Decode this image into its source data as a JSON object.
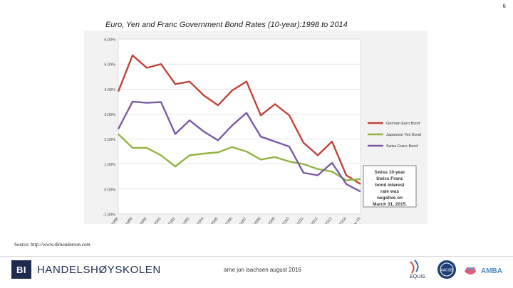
{
  "page_number": "6",
  "title": "Euro, Yen and Franc Government Bond Rates (10-year):1998 to 2014",
  "source": "Source: http://www.dimonderson.com",
  "footer": {
    "school": "HANDELSHØYSKOLEN",
    "logo_mark": "BI",
    "author_date": "arne jon isachsen august 2016",
    "accreditations": [
      {
        "name": "EQUIS",
        "icon": "equis-logo"
      },
      {
        "name": "AACSB",
        "icon": "aacsb-seal"
      },
      {
        "name": "AMBA",
        "icon": "amba-logo"
      }
    ]
  },
  "chart_data": {
    "type": "line",
    "x": [
      "1998",
      "1999",
      "2000",
      "2001",
      "2002",
      "2003",
      "2004",
      "2005",
      "2006",
      "2007",
      "2008",
      "2009",
      "2010",
      "2011",
      "2012",
      "2013",
      "2014",
      "11-Mar-15"
    ],
    "ylim": [
      -1,
      6
    ],
    "yticks": [
      "-1.00%",
      "0.00%",
      "1.00%",
      "2.00%",
      "3.00%",
      "4.00%",
      "5.00%",
      "6.00%"
    ],
    "grid": true,
    "legend_position": "right",
    "series": [
      {
        "name": "German Euro Bond",
        "color": "#c0443a",
        "values": [
          3.9,
          5.35,
          4.85,
          5.0,
          4.2,
          4.3,
          3.75,
          3.35,
          3.95,
          4.3,
          2.95,
          3.4,
          2.95,
          1.85,
          1.35,
          1.9,
          0.55,
          0.2
        ]
      },
      {
        "name": "Japanese Yen Bond",
        "color": "#93b341",
        "values": [
          2.2,
          1.65,
          1.65,
          1.35,
          0.9,
          1.35,
          1.42,
          1.47,
          1.68,
          1.5,
          1.18,
          1.28,
          1.1,
          1.0,
          0.8,
          0.7,
          0.35,
          0.4
        ]
      },
      {
        "name": "Swiss Franc Bond",
        "color": "#7a5aa6",
        "values": [
          2.4,
          3.5,
          3.45,
          3.48,
          2.2,
          2.75,
          2.3,
          1.95,
          2.55,
          3.05,
          2.1,
          1.9,
          1.7,
          0.65,
          0.55,
          1.05,
          0.2,
          -0.1
        ]
      }
    ],
    "annotation": "Swiss 10-year Swiss Franc bond interest rate was negative on March 31, 2015."
  }
}
